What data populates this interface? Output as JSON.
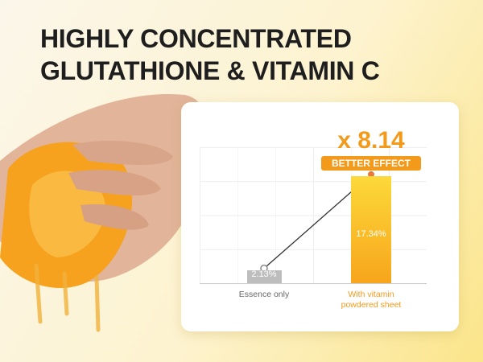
{
  "chart_data": {
    "type": "bar",
    "title": "HIGHLY CONCENTRATED GLUTATHIONE & VITAMIN C",
    "categories": [
      "Essence only",
      "With vitamin powdered sheet"
    ],
    "values": [
      2.13,
      17.34
    ],
    "value_labels": [
      "2.13%",
      "17.34%"
    ],
    "colors": [
      "#bdbdbd",
      "#f8a51c"
    ],
    "ylim": [
      0,
      22
    ],
    "annotations": [
      "x 8.14",
      "BETTER EFFECT"
    ]
  }
}
